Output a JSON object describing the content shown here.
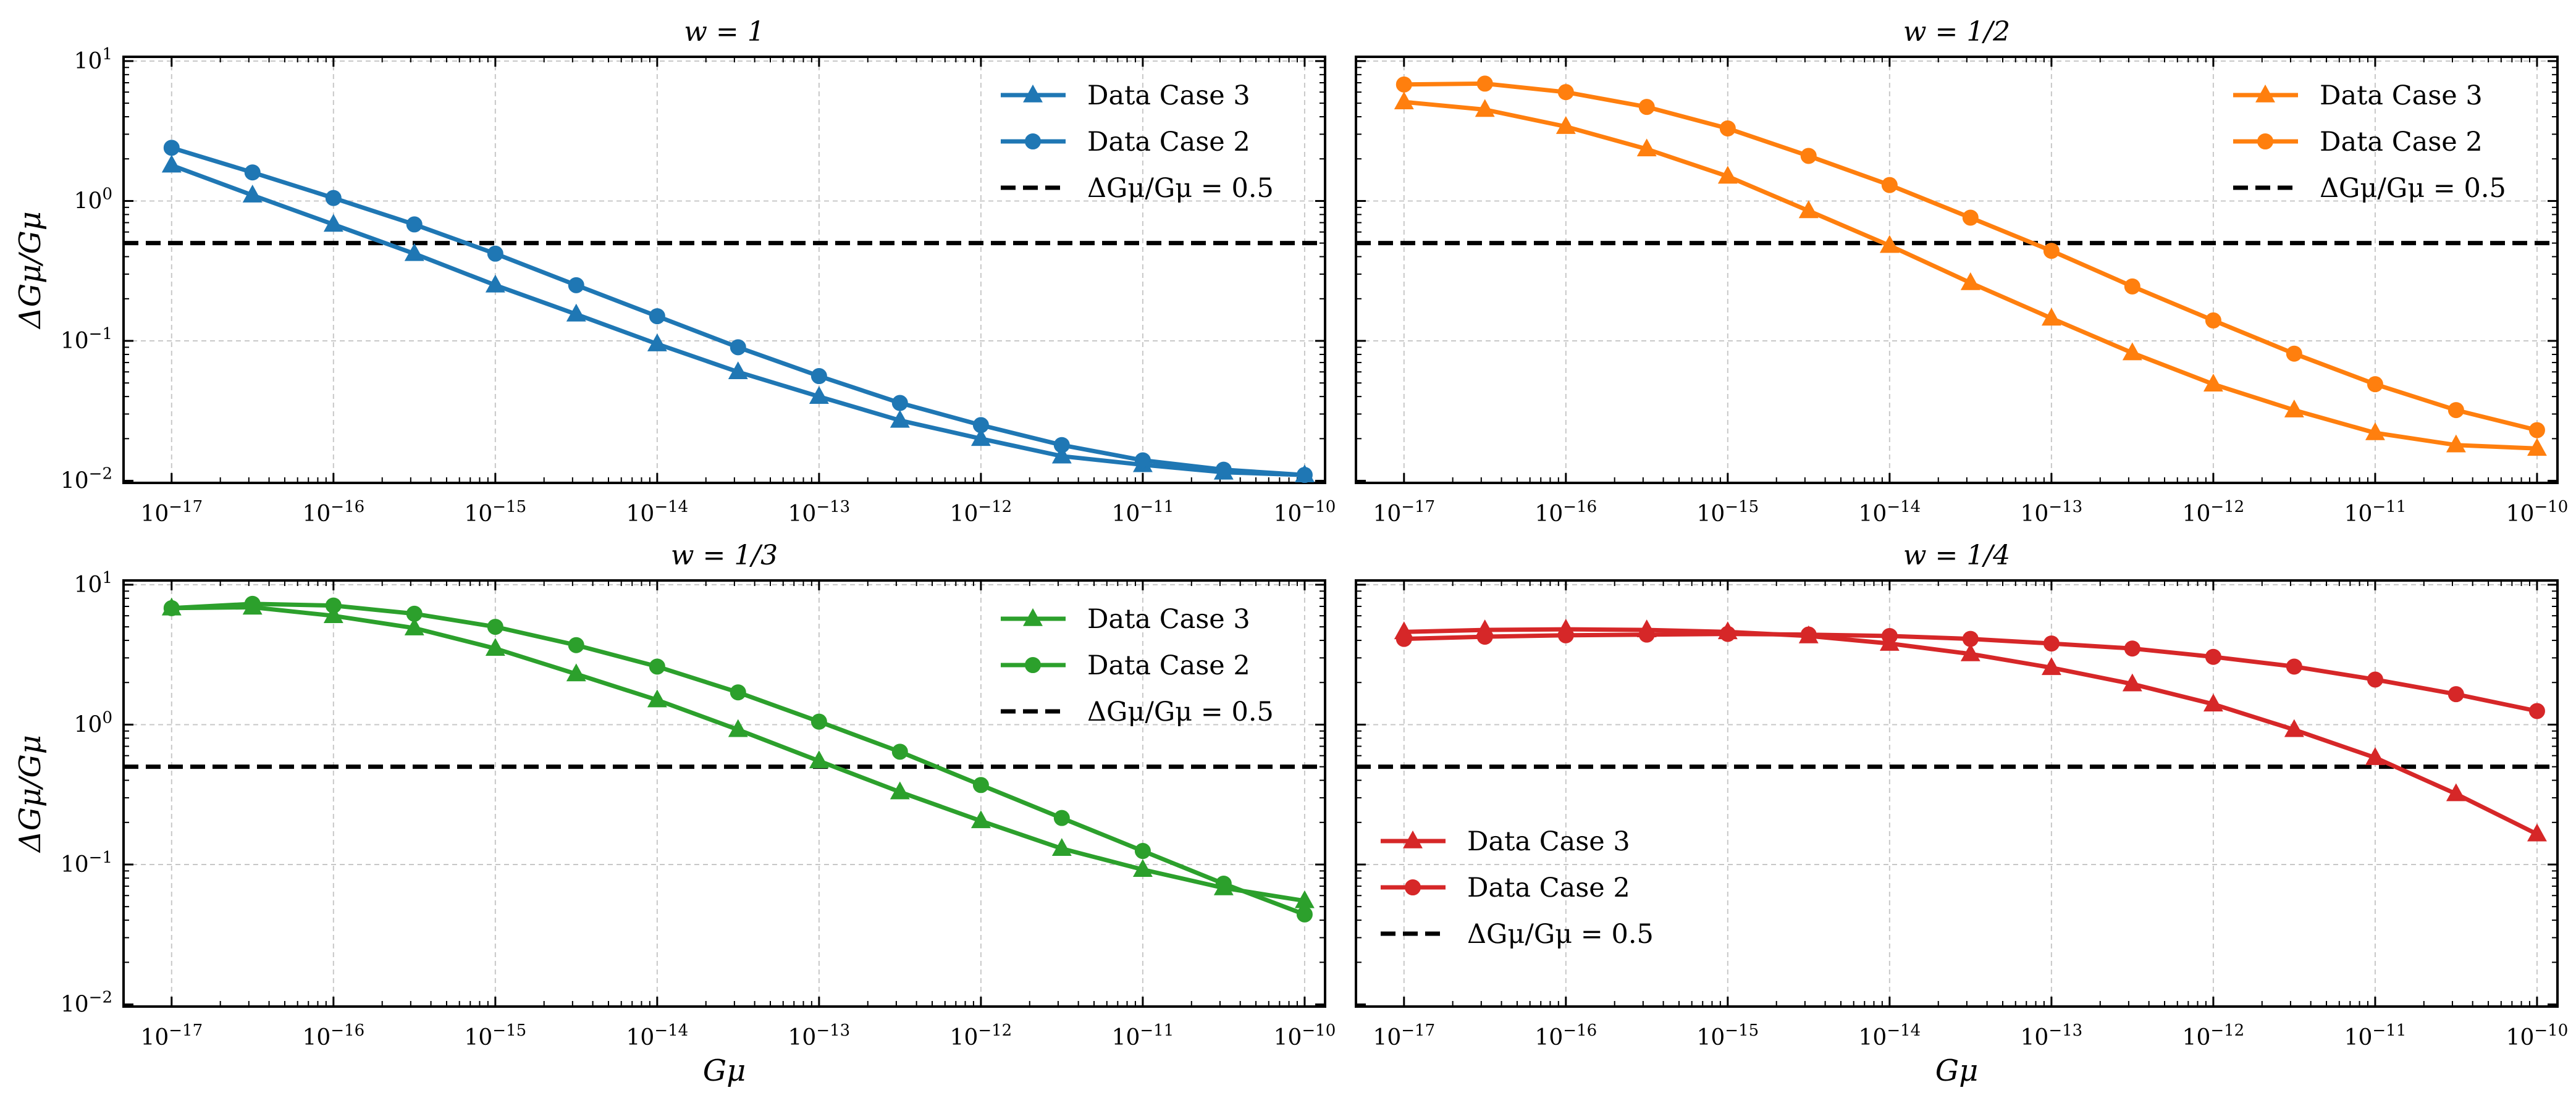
{
  "chart_data": [
    {
      "type": "line",
      "title": "w = 1",
      "color": "#1f77b4",
      "xlabel": "",
      "ylabel": "ΔGμ/Gμ",
      "xscale": "log",
      "yscale": "log",
      "xlim": [
        1e-17,
        1e-10
      ],
      "ylim": [
        0.01,
        10
      ],
      "legend_position": "top-right",
      "series": [
        {
          "name": "Data Case 3",
          "marker": "triangle",
          "x": [
            1e-17,
            3.16e-17,
            1e-16,
            3.16e-16,
            1e-15,
            3.16e-15,
            1e-14,
            3.16e-14,
            1e-13,
            3.16e-13,
            1e-12,
            3.16e-12,
            1e-11,
            3.16e-11,
            1e-10
          ],
          "y": [
            1.8,
            1.1,
            0.68,
            0.42,
            0.25,
            0.155,
            0.095,
            0.06,
            0.04,
            0.027,
            0.02,
            0.015,
            0.013,
            0.0115,
            0.011
          ]
        },
        {
          "name": "Data Case 2",
          "marker": "circle",
          "x": [
            1e-17,
            3.16e-17,
            1e-16,
            3.16e-16,
            1e-15,
            3.16e-15,
            1e-14,
            3.16e-14,
            1e-13,
            3.16e-13,
            1e-12,
            3.16e-12,
            1e-11,
            3.16e-11,
            1e-10
          ],
          "y": [
            2.4,
            1.6,
            1.05,
            0.68,
            0.42,
            0.25,
            0.15,
            0.09,
            0.056,
            0.036,
            0.025,
            0.018,
            0.014,
            0.012,
            0.011
          ]
        }
      ],
      "threshold": {
        "name": "ΔGμ/Gμ = 0.5",
        "y": 0.5
      }
    },
    {
      "type": "line",
      "title": "w = 1/2",
      "color": "#ff7f0e",
      "xlabel": "",
      "ylabel": "",
      "xscale": "log",
      "yscale": "log",
      "xlim": [
        1e-17,
        1e-10
      ],
      "ylim": [
        0.01,
        10
      ],
      "legend_position": "top-right",
      "series": [
        {
          "name": "Data Case 3",
          "marker": "triangle",
          "x": [
            1e-17,
            3.16e-17,
            1e-16,
            3.16e-16,
            1e-15,
            3.16e-15,
            1e-14,
            3.16e-14,
            1e-13,
            3.16e-13,
            1e-12,
            3.16e-12,
            1e-11,
            3.16e-11,
            1e-10
          ],
          "y": [
            5.1,
            4.5,
            3.4,
            2.35,
            1.5,
            0.85,
            0.48,
            0.26,
            0.145,
            0.082,
            0.049,
            0.032,
            0.022,
            0.018,
            0.017
          ]
        },
        {
          "name": "Data Case 2",
          "marker": "circle",
          "x": [
            1e-17,
            3.16e-17,
            1e-16,
            3.16e-16,
            1e-15,
            3.16e-15,
            1e-14,
            3.16e-14,
            1e-13,
            3.16e-13,
            1e-12,
            3.16e-12,
            1e-11,
            3.16e-11,
            1e-10
          ],
          "y": [
            6.8,
            6.9,
            6.0,
            4.7,
            3.3,
            2.1,
            1.3,
            0.76,
            0.44,
            0.245,
            0.14,
            0.081,
            0.049,
            0.032,
            0.023
          ]
        }
      ],
      "threshold": {
        "name": "ΔGμ/Gμ = 0.5",
        "y": 0.5
      }
    },
    {
      "type": "line",
      "title": "w = 1/3",
      "color": "#2ca02c",
      "xlabel": "Gμ",
      "ylabel": "ΔGμ/Gμ",
      "xscale": "log",
      "yscale": "log",
      "xlim": [
        1e-17,
        1e-10
      ],
      "ylim": [
        0.01,
        10
      ],
      "legend_position": "top-right",
      "series": [
        {
          "name": "Data Case 3",
          "marker": "triangle",
          "x": [
            1e-17,
            3.16e-17,
            1e-16,
            3.16e-16,
            1e-15,
            3.16e-15,
            1e-14,
            3.16e-14,
            1e-13,
            3.16e-13,
            1e-12,
            3.16e-12,
            1e-11,
            3.16e-11,
            1e-10
          ],
          "y": [
            6.8,
            6.9,
            6.0,
            4.9,
            3.5,
            2.3,
            1.5,
            0.92,
            0.55,
            0.33,
            0.205,
            0.13,
            0.092,
            0.068,
            0.055
          ]
        },
        {
          "name": "Data Case 2",
          "marker": "circle",
          "x": [
            1e-17,
            3.16e-17,
            1e-16,
            3.16e-16,
            1e-15,
            3.16e-15,
            1e-14,
            3.16e-14,
            1e-13,
            3.16e-13,
            1e-12,
            3.16e-12,
            1e-11,
            3.16e-11,
            1e-10
          ],
          "y": [
            6.8,
            7.3,
            7.1,
            6.2,
            5.0,
            3.7,
            2.6,
            1.7,
            1.05,
            0.64,
            0.37,
            0.215,
            0.125,
            0.073,
            0.044
          ]
        }
      ],
      "threshold": {
        "name": "ΔGμ/Gμ = 0.5",
        "y": 0.5
      }
    },
    {
      "type": "line",
      "title": "w = 1/4",
      "color": "#d62728",
      "xlabel": "Gμ",
      "ylabel": "",
      "xscale": "log",
      "yscale": "log",
      "xlim": [
        1e-17,
        1e-10
      ],
      "ylim": [
        0.01,
        10
      ],
      "legend_position": "bottom-left",
      "series": [
        {
          "name": "Data Case 3",
          "marker": "triangle",
          "x": [
            1e-17,
            3.16e-17,
            1e-16,
            3.16e-16,
            1e-15,
            3.16e-15,
            1e-14,
            3.16e-14,
            1e-13,
            3.16e-13,
            1e-12,
            3.16e-12,
            1e-11,
            3.16e-11,
            1e-10
          ],
          "y": [
            4.6,
            4.75,
            4.8,
            4.75,
            4.6,
            4.3,
            3.8,
            3.2,
            2.55,
            1.95,
            1.4,
            0.92,
            0.58,
            0.32,
            0.165
          ]
        },
        {
          "name": "Data Case 2",
          "marker": "circle",
          "x": [
            1e-17,
            3.16e-17,
            1e-16,
            3.16e-16,
            1e-15,
            3.16e-15,
            1e-14,
            3.16e-14,
            1e-13,
            3.16e-13,
            1e-12,
            3.16e-12,
            1e-11,
            3.16e-11,
            1e-10
          ],
          "y": [
            4.1,
            4.25,
            4.35,
            4.4,
            4.45,
            4.4,
            4.3,
            4.1,
            3.8,
            3.5,
            3.05,
            2.6,
            2.1,
            1.65,
            1.25
          ]
        }
      ],
      "threshold": {
        "name": "ΔGμ/Gμ = 0.5",
        "y": 0.5
      }
    }
  ]
}
